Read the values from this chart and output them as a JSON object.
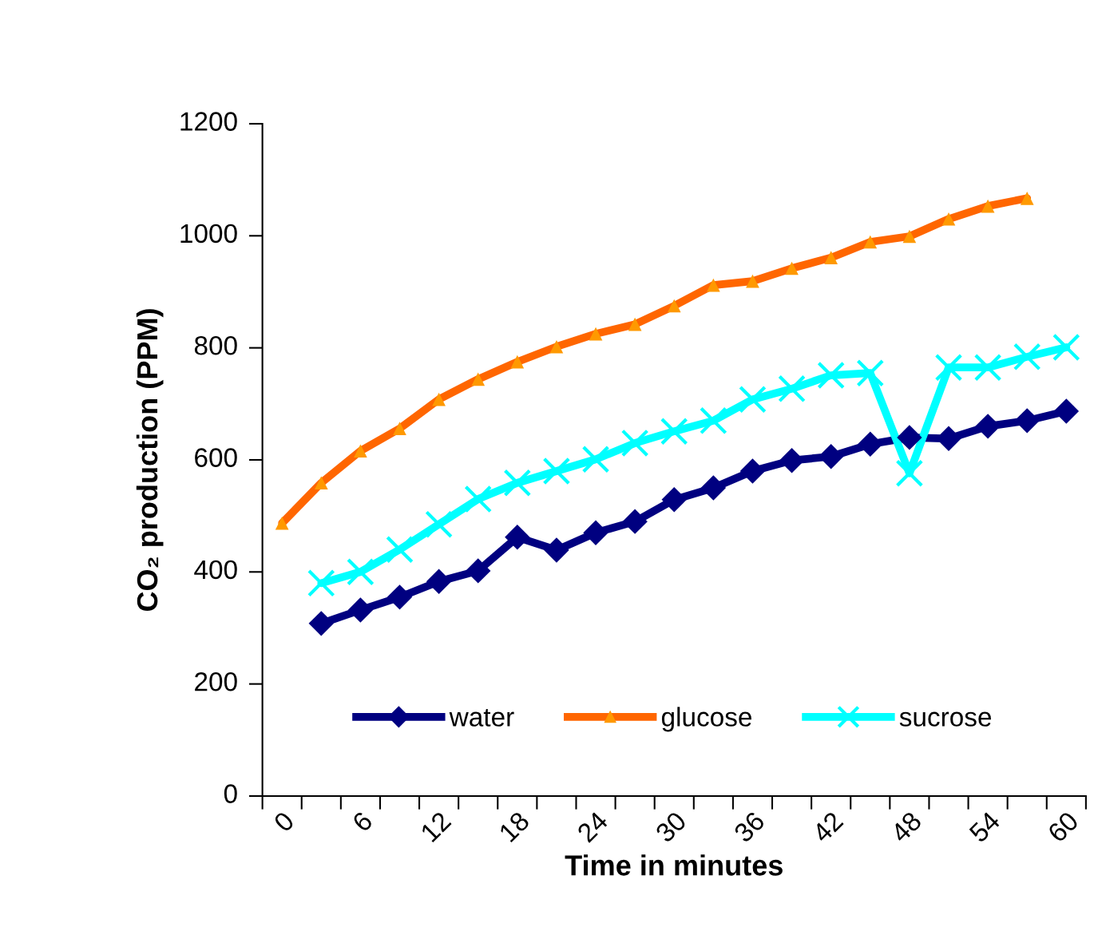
{
  "chart_data": {
    "type": "line",
    "xlabel": "Time in minutes",
    "ylabel": "CO₂ production (PPM)",
    "categories": [
      "0",
      null,
      "6",
      null,
      "12",
      null,
      "18",
      null,
      "24",
      null,
      "30",
      null,
      "36",
      null,
      "42",
      null,
      "48",
      null,
      "54",
      null,
      "60"
    ],
    "series": [
      {
        "name": "water",
        "color": "#000080",
        "marker": "diamond",
        "values": [
          null,
          308,
          332,
          355,
          383,
          402,
          462,
          439,
          470,
          490,
          529,
          550,
          580,
          599,
          606,
          628,
          640,
          638,
          660,
          670,
          687
        ]
      },
      {
        "name": "glucose",
        "color": "#ff6600",
        "marker": "triangle",
        "values": [
          487,
          559,
          616,
          656,
          708,
          744,
          775,
          802,
          825,
          842,
          875,
          912,
          919,
          942,
          961,
          989,
          999,
          1030,
          1053,
          1067,
          null
        ]
      },
      {
        "name": "sucrose",
        "color": "#00ffff",
        "marker": "cross",
        "values": [
          null,
          380,
          400,
          440,
          485,
          530,
          559,
          580,
          601,
          630,
          651,
          670,
          708,
          727,
          751,
          755,
          576,
          765,
          765,
          784,
          801
        ]
      }
    ],
    "ylim": [
      0,
      1200
    ],
    "yticks": [
      0,
      200,
      400,
      600,
      800,
      1000,
      1200
    ],
    "grid": false,
    "legend": "bottom",
    "line_style": "solid"
  }
}
